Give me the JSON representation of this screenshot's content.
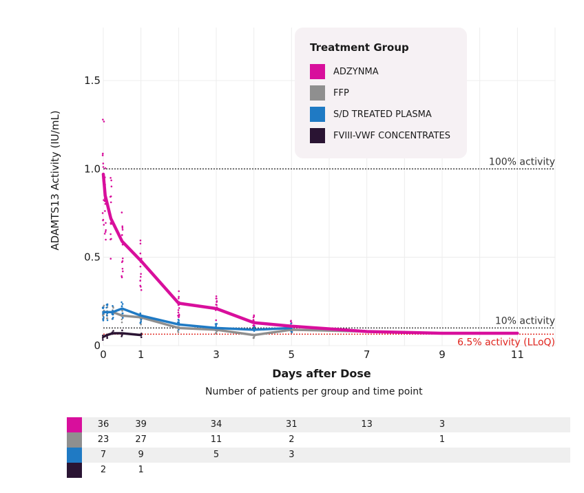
{
  "chart_data": {
    "type": "line",
    "title": "",
    "xlabel": "Days after Dose",
    "ylabel": "ADAMTS13 Activity (IU/mL)",
    "xlim": [
      0,
      12
    ],
    "ylim": [
      0,
      1.8
    ],
    "x_ticks": [
      0,
      1,
      3,
      5,
      7,
      9,
      11
    ],
    "y_ticks": [
      {
        "value": 0,
        "label": "0"
      },
      {
        "value": 0.5,
        "label": "0.5"
      },
      {
        "value": 1.0,
        "label": "1.0"
      },
      {
        "value": 1.5,
        "label": "1.5"
      }
    ],
    "grid": true,
    "reference_lines": [
      {
        "name": "ref-100",
        "value": 1.0,
        "label": "100% activity",
        "color": "#333333"
      },
      {
        "name": "ref-10",
        "value": 0.1,
        "label": "10% activity",
        "color": "#333333"
      },
      {
        "name": "ref-lloq",
        "value": 0.065,
        "label": "6.5% activity (LLoQ)",
        "color": "#e0221b"
      }
    ],
    "legend_title": "Treatment Group",
    "series": [
      {
        "name": "ADZYNMA",
        "color": "#d80f9c",
        "x": [
          0,
          0.05,
          0.2,
          0.5,
          1,
          2,
          3,
          4,
          5,
          7,
          9,
          11
        ],
        "y": [
          0.97,
          0.85,
          0.72,
          0.59,
          0.48,
          0.24,
          0.21,
          0.13,
          0.11,
          0.08,
          0.07,
          0.07
        ]
      },
      {
        "name": "FFP",
        "color": "#8f8f8f",
        "x": [
          0,
          0.1,
          0.25,
          0.5,
          1,
          2,
          3,
          4,
          5,
          7,
          9,
          11
        ],
        "y": [
          0.19,
          0.19,
          0.19,
          0.17,
          0.16,
          0.1,
          0.09,
          0.06,
          0.09,
          0.08,
          0.07,
          0.07
        ]
      },
      {
        "name": "S/D TREATED PLASMA",
        "color": "#1f7ac4",
        "x": [
          0,
          0.1,
          0.25,
          0.5,
          1,
          2,
          3,
          4,
          5
        ],
        "y": [
          0.19,
          0.19,
          0.19,
          0.21,
          0.17,
          0.12,
          0.1,
          0.09,
          0.1
        ]
      },
      {
        "name": "FVIII-VWF CONCENTRATES",
        "color": "#2a1433",
        "x": [
          0,
          0.1,
          0.25,
          0.5,
          1
        ],
        "y": [
          0.05,
          0.06,
          0.07,
          0.07,
          0.06
        ]
      }
    ],
    "patient_counts": {
      "caption": "Number of patients per group and time point",
      "columns": [
        0,
        1,
        3,
        5,
        7,
        9
      ],
      "rows": [
        {
          "series": "ADZYNMA",
          "color": "#d80f9c",
          "counts": [
            "36",
            "39",
            "34",
            "31",
            "13",
            "3"
          ]
        },
        {
          "series": "FFP",
          "color": "#8f8f8f",
          "counts": [
            "23",
            "27",
            "11",
            "2",
            "",
            "1"
          ]
        },
        {
          "series": "S/D TREATED PLASMA",
          "color": "#1f7ac4",
          "counts": [
            "7",
            "9",
            "5",
            "3",
            "",
            ""
          ]
        },
        {
          "series": "FVIII-VWF CONCENTRATES",
          "color": "#2a1433",
          "counts": [
            "2",
            "1",
            "",
            "",
            "",
            ""
          ]
        }
      ]
    }
  }
}
